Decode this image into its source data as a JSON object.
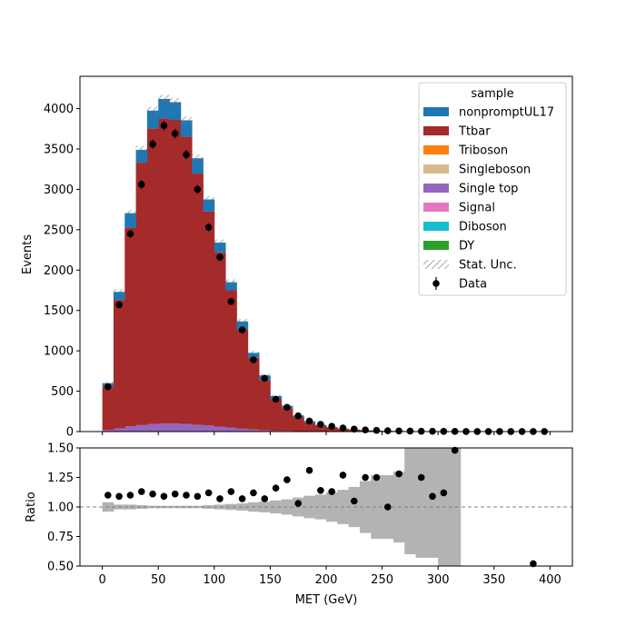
{
  "chart_data": [
    {
      "type": "bar",
      "panel": "main",
      "stacked": true,
      "bin_edges": [
        0,
        10,
        20,
        30,
        40,
        50,
        60,
        70,
        80,
        90,
        100,
        110,
        120,
        130,
        140,
        150,
        160,
        170,
        180,
        190,
        200,
        210,
        220,
        230,
        240,
        250,
        260,
        270,
        280,
        290,
        300,
        310,
        320,
        330,
        340,
        350,
        360,
        370,
        380,
        390,
        400
      ],
      "series": [
        {
          "name": "DY",
          "color": "#2ca02c",
          "values": [
            0,
            0,
            0,
            0,
            0,
            0,
            0,
            0,
            0,
            0,
            0,
            0,
            0,
            0,
            0,
            0,
            0,
            0,
            0,
            0,
            0,
            0,
            0,
            0,
            0,
            0,
            0,
            0,
            0,
            0,
            0,
            0,
            0,
            0,
            0,
            0,
            0,
            0,
            0,
            0
          ]
        },
        {
          "name": "Diboson",
          "color": "#17becf",
          "values": [
            0,
            0,
            0,
            0,
            0,
            0,
            0,
            0,
            0,
            0,
            0,
            0,
            0,
            0,
            0,
            0,
            0,
            0,
            0,
            0,
            0,
            0,
            0,
            0,
            0,
            0,
            0,
            0,
            0,
            0,
            0,
            0,
            0,
            0,
            0,
            0,
            0,
            0,
            0,
            0
          ]
        },
        {
          "name": "Signal",
          "color": "#e377c2",
          "values": [
            0,
            0,
            0,
            0,
            0,
            0,
            0,
            0,
            0,
            0,
            0,
            0,
            0,
            0,
            0,
            0,
            0,
            0,
            0,
            0,
            0,
            0,
            0,
            0,
            0,
            0,
            0,
            0,
            0,
            0,
            0,
            0,
            0,
            0,
            0,
            0,
            0,
            0,
            0,
            0
          ]
        },
        {
          "name": "Single top",
          "color": "#9467bd",
          "values": [
            20,
            40,
            65,
            80,
            95,
            100,
            100,
            95,
            85,
            75,
            60,
            50,
            35,
            25,
            15,
            10,
            8,
            5,
            4,
            3,
            2,
            1,
            1,
            1,
            0,
            0,
            0,
            0,
            0,
            0,
            0,
            0,
            0,
            0,
            0,
            0,
            0,
            0,
            0,
            0
          ]
        },
        {
          "name": "Singleboson",
          "color": "#d6b98c",
          "values": [
            0,
            0,
            0,
            0,
            0,
            0,
            0,
            0,
            0,
            0,
            0,
            0,
            0,
            0,
            0,
            0,
            0,
            0,
            0,
            0,
            0,
            0,
            0,
            0,
            0,
            0,
            0,
            0,
            0,
            0,
            0,
            0,
            0,
            0,
            0,
            0,
            0,
            0,
            0,
            0
          ]
        },
        {
          "name": "Triboson",
          "color": "#ff7f0e",
          "values": [
            0,
            0,
            0,
            0,
            0,
            0,
            0,
            0,
            0,
            0,
            0,
            0,
            0,
            0,
            0,
            0,
            0,
            0,
            0,
            0,
            0,
            0,
            0,
            0,
            0,
            0,
            0,
            0,
            0,
            0,
            0,
            0,
            0,
            0,
            0,
            0,
            0,
            0,
            0,
            0
          ]
        },
        {
          "name": "Ttbar",
          "color": "#a52a2a",
          "values": [
            540,
            1590,
            2460,
            3250,
            3660,
            3780,
            3760,
            3560,
            3110,
            2650,
            2160,
            1700,
            1230,
            890,
            620,
            390,
            280,
            175,
            110,
            70,
            50,
            32,
            22,
            15,
            11,
            8,
            6,
            4,
            3,
            2,
            2,
            1,
            1,
            1,
            0,
            0,
            0,
            0,
            0,
            0
          ]
        },
        {
          "name": "nonpromptUL17",
          "color": "#1f77b4",
          "values": [
            40,
            100,
            180,
            160,
            220,
            240,
            220,
            200,
            190,
            150,
            120,
            100,
            100,
            60,
            60,
            40,
            30,
            20,
            15,
            10,
            5,
            5,
            3,
            2,
            2,
            1,
            1,
            0,
            0,
            0,
            0,
            0,
            0,
            0,
            0,
            0,
            0,
            0,
            0,
            0
          ]
        }
      ],
      "data_points": {
        "name": "Data",
        "x": [
          5,
          15,
          25,
          35,
          45,
          55,
          65,
          75,
          85,
          95,
          105,
          115,
          125,
          135,
          145,
          155,
          165,
          175,
          185,
          195,
          205,
          215,
          225,
          235,
          245,
          255,
          265,
          275,
          285,
          295,
          305,
          315,
          325,
          335,
          345,
          355,
          365,
          375,
          385,
          395
        ],
        "y": [
          555,
          1570,
          2450,
          3060,
          3560,
          3790,
          3690,
          3430,
          3000,
          2530,
          2160,
          1610,
          1260,
          890,
          660,
          400,
          300,
          195,
          130,
          90,
          65,
          45,
          30,
          20,
          15,
          10,
          8,
          6,
          4,
          3,
          2,
          2,
          1,
          1,
          1,
          1,
          1,
          1,
          1,
          1
        ]
      },
      "legend": {
        "title": "sample",
        "placement": "upper right",
        "entries": [
          {
            "label": "nonpromptUL17",
            "color": "#1f77b4",
            "kind": "patch"
          },
          {
            "label": "Ttbar",
            "color": "#a52a2a",
            "kind": "patch"
          },
          {
            "label": "Triboson",
            "color": "#ff7f0e",
            "kind": "patch"
          },
          {
            "label": "Singleboson",
            "color": "#d6b98c",
            "kind": "patch"
          },
          {
            "label": "Single top",
            "color": "#9467bd",
            "kind": "patch"
          },
          {
            "label": "Signal",
            "color": "#e377c2",
            "kind": "patch"
          },
          {
            "label": "Diboson",
            "color": "#17becf",
            "kind": "patch"
          },
          {
            "label": "DY",
            "color": "#2ca02c",
            "kind": "patch"
          },
          {
            "label": "Stat. Unc.",
            "color": "#808080",
            "kind": "hatch"
          },
          {
            "label": "Data",
            "color": "#000000",
            "kind": "marker"
          }
        ]
      },
      "ylabel": "Events",
      "xlim": [
        -20,
        420
      ],
      "ylim": [
        0,
        4400
      ],
      "yticks": [
        0,
        500,
        1000,
        1500,
        2000,
        2500,
        3000,
        3500,
        4000
      ]
    },
    {
      "type": "scatter",
      "panel": "ratio",
      "x": [
        5,
        15,
        25,
        35,
        45,
        55,
        65,
        75,
        85,
        95,
        105,
        115,
        125,
        135,
        145,
        155,
        165,
        175,
        185,
        195,
        205,
        215,
        225,
        235,
        245,
        255,
        265,
        285,
        295,
        305,
        315,
        385
      ],
      "y": [
        1.1,
        1.09,
        1.1,
        1.13,
        1.11,
        1.09,
        1.11,
        1.1,
        1.09,
        1.12,
        1.07,
        1.13,
        1.07,
        1.12,
        1.07,
        1.16,
        1.23,
        1.03,
        1.31,
        1.14,
        1.13,
        1.27,
        1.05,
        1.25,
        1.25,
        1.0,
        1.28,
        1.25,
        1.09,
        1.12,
        1.48,
        0.52
      ],
      "uncertainty_band": {
        "color": "#b3b3b3",
        "lower": [
          0.96,
          0.98,
          0.98,
          0.985,
          0.99,
          0.99,
          0.99,
          0.99,
          0.99,
          0.985,
          0.98,
          0.975,
          0.97,
          0.96,
          0.955,
          0.945,
          0.935,
          0.92,
          0.905,
          0.895,
          0.875,
          0.855,
          0.83,
          0.78,
          0.73,
          0.73,
          0.7,
          0.6,
          0.57,
          0.57,
          0.5,
          0.5,
          0.5,
          0.5,
          0.5,
          0.5,
          0.5,
          0.5,
          0.5,
          0.5
        ],
        "upper": [
          1.04,
          1.02,
          1.02,
          1.015,
          1.01,
          1.01,
          1.01,
          1.01,
          1.01,
          1.015,
          1.02,
          1.025,
          1.03,
          1.04,
          1.045,
          1.055,
          1.065,
          1.08,
          1.095,
          1.105,
          1.125,
          1.145,
          1.17,
          1.22,
          1.27,
          1.27,
          1.3,
          1.5,
          1.5,
          1.5,
          1.5,
          1.5,
          1.5,
          1.5,
          1.5,
          1.5,
          1.5,
          1.5,
          1.5,
          1.5
        ],
        "present": [
          1,
          1,
          1,
          1,
          1,
          1,
          1,
          1,
          1,
          1,
          1,
          1,
          1,
          1,
          1,
          1,
          1,
          1,
          1,
          1,
          1,
          1,
          1,
          1,
          1,
          1,
          1,
          1,
          1,
          1,
          1,
          1,
          0,
          0,
          0,
          0,
          0,
          0,
          0,
          0
        ]
      },
      "reference_line": 1.0,
      "xlabel": "MET (GeV)",
      "ylabel": "Ratio",
      "xlim": [
        -20,
        420
      ],
      "ylim": [
        0.5,
        1.5
      ],
      "yticks": [
        "0.50",
        "0.75",
        "1.00",
        "1.25",
        "1.50"
      ],
      "xticks": [
        "0",
        "50",
        "100",
        "150",
        "200",
        "250",
        "300",
        "350",
        "400"
      ]
    }
  ]
}
